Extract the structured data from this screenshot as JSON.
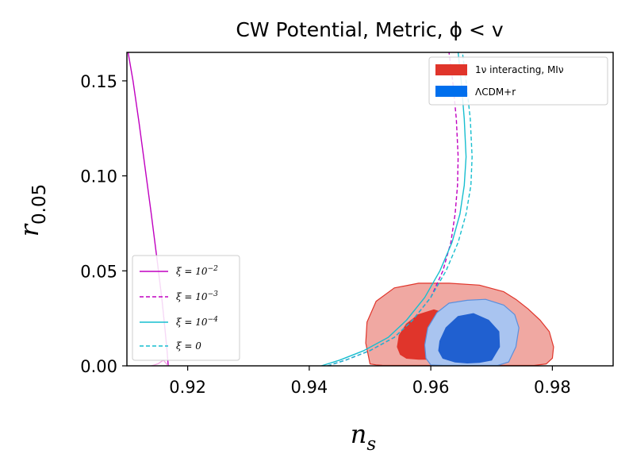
{
  "chart_data": {
    "type": "line",
    "title": "CW Potential, Metric, ϕ < v",
    "xlabel_main": "n",
    "xlabel_sub": "s",
    "ylabel_main": "r",
    "ylabel_sub": "0.05",
    "xlim": [
      0.91,
      0.99
    ],
    "ylim": [
      0.0,
      0.165
    ],
    "xticks": [
      0.92,
      0.94,
      0.96,
      0.98
    ],
    "xtick_labels": [
      "0.92",
      "0.94",
      "0.96",
      "0.98"
    ],
    "yticks": [
      0.0,
      0.05,
      0.1,
      0.15
    ],
    "ytick_labels": [
      "0.00",
      "0.05",
      "0.10",
      "0.15"
    ],
    "grid": false,
    "contour_legend": {
      "location": "upper right",
      "entries": [
        {
          "label": "1ν interacting, MIν",
          "color": "#e0352b"
        },
        {
          "label": "ΛCDM+r",
          "color": "#006fed"
        }
      ]
    },
    "line_legend": {
      "location": "lower left",
      "entries": [
        {
          "label_prefix": "ξ = 10",
          "label_exp": "−2",
          "color": "#c000c0",
          "style": "solid"
        },
        {
          "label_prefix": "ξ = 10",
          "label_exp": "−3",
          "color": "#c000c0",
          "style": "dashed"
        },
        {
          "label_prefix": "ξ = 10",
          "label_exp": "−4",
          "color": "#17becf",
          "style": "solid"
        },
        {
          "label_prefix": "ξ = 0",
          "label_exp": "",
          "color": "#17becf",
          "style": "dashed"
        }
      ]
    },
    "contours": [
      {
        "name": "1ν interacting, MIν",
        "levels": [
          {
            "level": "95%",
            "fill": "#f0a8a2",
            "stroke": "#e0352b",
            "x": [
              0.95,
              0.951,
              0.952,
              0.9535,
              0.955,
              0.957,
              0.96,
              0.963,
              0.966,
              0.969,
              0.972,
              0.975,
              0.977,
              0.979,
              0.98,
              0.9802,
              0.9795,
              0.978,
              0.976,
              0.974,
              0.972,
              0.968,
              0.963,
              0.958,
              0.954,
              0.951,
              0.9495,
              0.9493
            ],
            "y": [
              0.001,
              0.0005,
              0.0003,
              0.0002,
              0.0002,
              0.0002,
              0.0002,
              0.0002,
              0.0002,
              0.0002,
              0.0002,
              0.0002,
              0.0002,
              0.001,
              0.004,
              0.01,
              0.018,
              0.024,
              0.03,
              0.035,
              0.039,
              0.0425,
              0.0435,
              0.0435,
              0.041,
              0.034,
              0.023,
              0.012
            ]
          },
          {
            "level": "68%",
            "fill": "#e0352b",
            "stroke": "#e0352b",
            "x": [
              0.955,
              0.956,
              0.958,
              0.961,
              0.9635,
              0.965,
              0.965,
              0.963,
              0.9605,
              0.958,
              0.956,
              0.9548,
              0.9545
            ],
            "y": [
              0.006,
              0.004,
              0.0035,
              0.0035,
              0.004,
              0.01,
              0.02,
              0.027,
              0.0295,
              0.027,
              0.022,
              0.016,
              0.01
            ]
          }
        ]
      },
      {
        "name": "ΛCDM+r",
        "levels": [
          {
            "level": "95%",
            "fill": "#a9c4f0",
            "stroke": "#5b8fdc",
            "x": [
              0.96,
              0.962,
              0.965,
              0.968,
              0.971,
              0.9728,
              0.974,
              0.9745,
              0.9738,
              0.972,
              0.969,
              0.966,
              0.963,
              0.961,
              0.9595,
              0.959,
              0.9592
            ],
            "y": [
              0.0005,
              0.0002,
              0.0002,
              0.0002,
              0.0002,
              0.002,
              0.01,
              0.02,
              0.027,
              0.032,
              0.035,
              0.0345,
              0.033,
              0.028,
              0.02,
              0.011,
              0.004
            ]
          },
          {
            "level": "68%",
            "fill": "#2060d0",
            "stroke": "#2060d0",
            "x": [
              0.962,
              0.964,
              0.966,
              0.968,
              0.97,
              0.9713,
              0.9712,
              0.9695,
              0.967,
              0.9645,
              0.9625,
              0.9615,
              0.9613
            ],
            "y": [
              0.004,
              0.002,
              0.0015,
              0.0018,
              0.003,
              0.01,
              0.018,
              0.024,
              0.0275,
              0.026,
              0.02,
              0.013,
              0.008
            ]
          }
        ]
      }
    ],
    "series": [
      {
        "name": "ξ = 10^−2",
        "color": "#c000c0",
        "style": "solid",
        "x": [
          0.9102,
          0.911,
          0.912,
          0.913,
          0.914,
          0.915,
          0.9158,
          0.9163,
          0.9166,
          0.9168
        ],
        "y": [
          0.165,
          0.15,
          0.128,
          0.104,
          0.08,
          0.055,
          0.034,
          0.018,
          0.008,
          0.0
        ]
      },
      {
        "name": "ξ = 10^−2 (lower branch)",
        "color": "#f4a6e4",
        "style": "solid",
        "x": [
          0.9168,
          0.916,
          0.9152,
          0.9145,
          0.914
        ],
        "y": [
          0.0,
          0.003,
          0.0012,
          0.0004,
          0.0
        ]
      },
      {
        "name": "ξ = 10^−3",
        "color": "#c000c0",
        "style": "dashed",
        "x": [
          0.943,
          0.946,
          0.95,
          0.954,
          0.957,
          0.96,
          0.962,
          0.9633,
          0.964,
          0.9644,
          0.9645,
          0.9642,
          0.9636,
          0.963
        ],
        "y": [
          0.0,
          0.003,
          0.008,
          0.015,
          0.024,
          0.036,
          0.05,
          0.065,
          0.08,
          0.095,
          0.11,
          0.13,
          0.15,
          0.165
        ]
      },
      {
        "name": "ξ = 10^−4",
        "color": "#17becf",
        "style": "solid",
        "x": [
          0.942,
          0.945,
          0.949,
          0.953,
          0.956,
          0.959,
          0.9615,
          0.9635,
          0.9648,
          0.9655,
          0.9658,
          0.9655,
          0.965,
          0.9645
        ],
        "y": [
          0.0,
          0.003,
          0.008,
          0.015,
          0.024,
          0.036,
          0.05,
          0.065,
          0.08,
          0.095,
          0.11,
          0.13,
          0.15,
          0.165
        ]
      },
      {
        "name": "ξ = 0",
        "color": "#17becf",
        "style": "dashed",
        "x": [
          0.943,
          0.946,
          0.95,
          0.954,
          0.957,
          0.96,
          0.9625,
          0.9645,
          0.9658,
          0.9666,
          0.9668,
          0.9665,
          0.9658,
          0.9652
        ],
        "y": [
          0.0,
          0.003,
          0.008,
          0.015,
          0.024,
          0.036,
          0.05,
          0.065,
          0.08,
          0.095,
          0.11,
          0.13,
          0.15,
          0.165
        ]
      }
    ]
  }
}
